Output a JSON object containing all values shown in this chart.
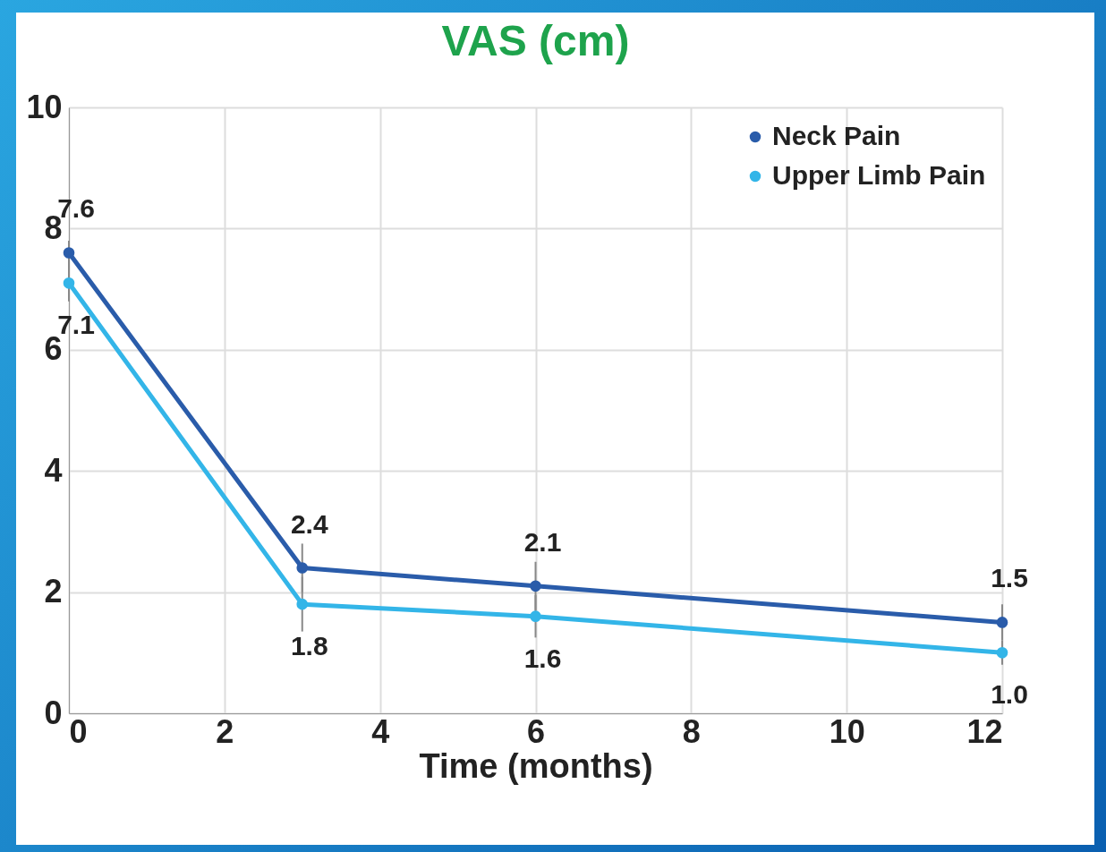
{
  "chart_data": {
    "type": "line",
    "title": "VAS (cm)",
    "xlabel": "Time (months)",
    "x": [
      0,
      3,
      6,
      12
    ],
    "series": [
      {
        "name": "Neck Pain",
        "color": "#2a5caa",
        "values": [
          7.6,
          2.4,
          2.1,
          1.5
        ],
        "value_labels": [
          "7.6",
          "2.4",
          "2.1",
          "1.5"
        ],
        "errors": [
          0.2,
          0.4,
          0.4,
          0.3
        ]
      },
      {
        "name": "Upper Limb Pain",
        "color": "#33b5e8",
        "values": [
          7.1,
          1.8,
          1.6,
          1.0
        ],
        "value_labels": [
          "7.1",
          "1.8",
          "1.6",
          "1.0"
        ],
        "errors": [
          0.3,
          0.45,
          0.35,
          0.2
        ]
      }
    ],
    "xlim": [
      0,
      12
    ],
    "xticks": [
      0,
      2,
      4,
      6,
      8,
      10,
      12
    ],
    "ylim": [
      0,
      10
    ],
    "yticks": [
      0,
      2,
      4,
      6,
      8,
      10
    ],
    "grid": true,
    "legend": "top right",
    "marker": "circle",
    "line_style": "solid"
  }
}
